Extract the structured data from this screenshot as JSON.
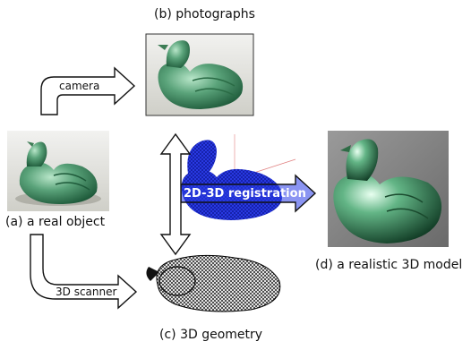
{
  "labels": {
    "photographs": "(b) photographs",
    "real_object": "(a) a real object",
    "geometry": "(c) 3D geometry",
    "model": "(d) a realistic 3D model"
  },
  "arrows": {
    "camera": "camera",
    "scanner": "3D scanner",
    "registration": "2D-3D registration"
  },
  "colors": {
    "duck_green": "#5aa37a",
    "mesh_blue": "#1f2fd6",
    "mesh_black": "#111111",
    "photo_bg": "#7d7d7d"
  }
}
